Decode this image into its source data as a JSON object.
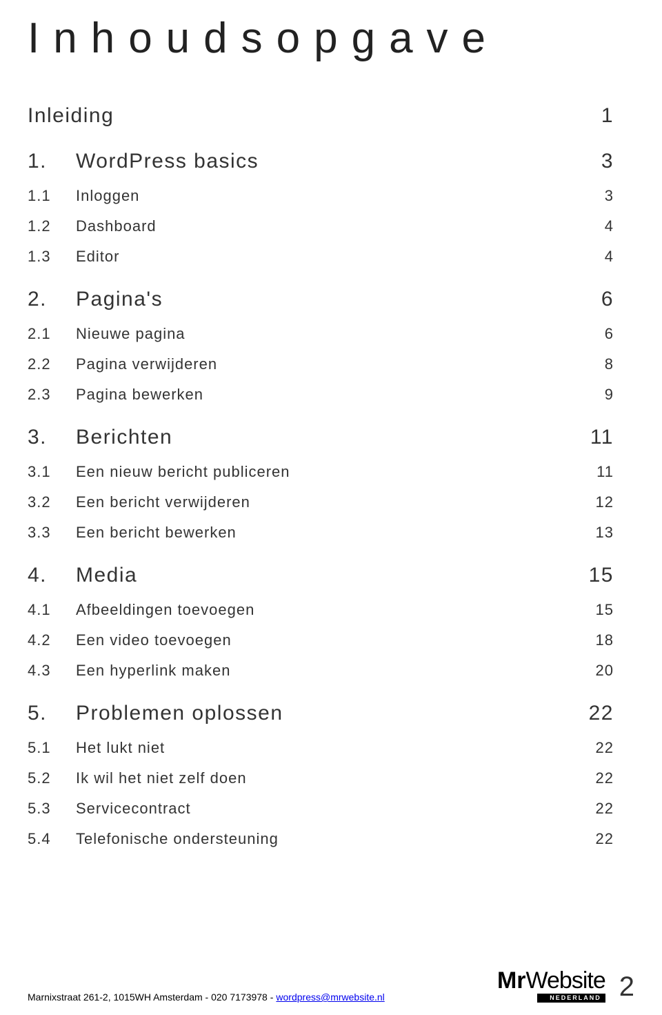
{
  "title": "Inhoudsopgave",
  "intro": {
    "label": "Inleiding",
    "page": "1"
  },
  "sections": [
    {
      "num": "1.",
      "label": "WordPress basics",
      "page": "3",
      "subs": [
        {
          "num": "1.1",
          "label": "Inloggen",
          "page": "3"
        },
        {
          "num": "1.2",
          "label": "Dashboard",
          "page": "4"
        },
        {
          "num": "1.3",
          "label": "Editor",
          "page": "4"
        }
      ]
    },
    {
      "num": "2.",
      "label": "Pagina's",
      "page": "6",
      "subs": [
        {
          "num": "2.1",
          "label": "Nieuwe pagina",
          "page": "6"
        },
        {
          "num": "2.2",
          "label": "Pagina verwijderen",
          "page": "8"
        },
        {
          "num": "2.3",
          "label": "Pagina bewerken",
          "page": "9"
        }
      ]
    },
    {
      "num": "3.",
      "label": "Berichten",
      "page": "11",
      "subs": [
        {
          "num": "3.1",
          "label": "Een nieuw bericht publiceren",
          "page": "11"
        },
        {
          "num": "3.2",
          "label": "Een bericht verwijderen",
          "page": "12"
        },
        {
          "num": "3.3",
          "label": "Een bericht bewerken",
          "page": "13"
        }
      ]
    },
    {
      "num": "4.",
      "label": "Media",
      "page": "15",
      "subs": [
        {
          "num": "4.1",
          "label": "Afbeeldingen toevoegen",
          "page": "15"
        },
        {
          "num": "4.2",
          "label": "Een video toevoegen",
          "page": "18"
        },
        {
          "num": "4.3",
          "label": "Een hyperlink maken",
          "page": "20"
        }
      ]
    },
    {
      "num": "5.",
      "label": "Problemen oplossen",
      "page": "22",
      "subs": [
        {
          "num": "5.1",
          "label": "Het lukt niet",
          "page": "22"
        },
        {
          "num": "5.2",
          "label": "Ik wil het niet zelf doen",
          "page": "22"
        },
        {
          "num": "5.3",
          "label": "Servicecontract",
          "page": "22"
        },
        {
          "num": "5.4",
          "label": "Telefonische ondersteuning",
          "page": "22"
        }
      ]
    }
  ],
  "footer": {
    "address": "Marnixstraat 261-2, 1015WH Amsterdam - 020 7173978 - ",
    "email": "wordpress@mrwebsite.nl",
    "logo_bold": "Mr",
    "logo_light": "Website",
    "logo_tag": "NEDERLAND",
    "page_number": "2"
  },
  "style": {
    "title_fontsize": 62,
    "title_letterspacing": 20,
    "section_fontsize": 30,
    "sub_fontsize": 22,
    "text_color": "#333333",
    "background_color": "#ffffff",
    "link_color": "#0000ee",
    "font_family": "Helvetica Neue Light"
  }
}
